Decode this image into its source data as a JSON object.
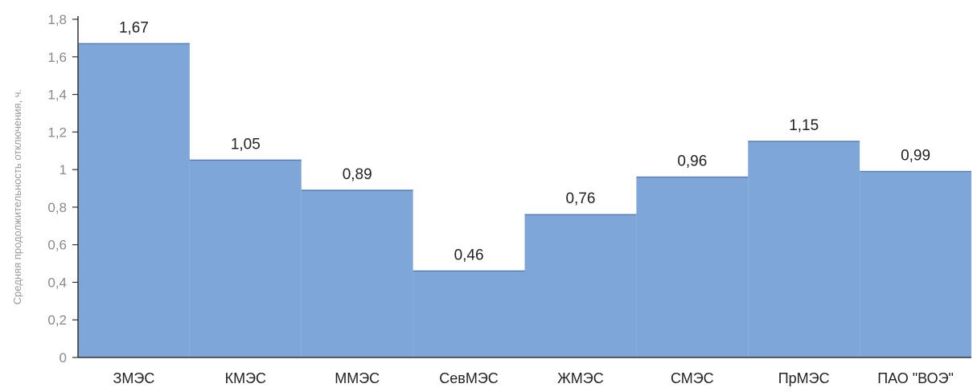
{
  "chart_data": {
    "type": "bar",
    "title": "",
    "xlabel": "",
    "ylabel": "Средняя продолжительность отключения, ч.",
    "categories": [
      "ЗМЭС",
      "КМЭС",
      "ММЭС",
      "СевМЭС",
      "ЖМЭС",
      "СМЭС",
      "ПрМЭС",
      "ПАО \"ВОЭ\""
    ],
    "values": [
      1.67,
      1.05,
      0.89,
      0.46,
      0.76,
      0.96,
      1.15,
      0.99
    ],
    "data_labels": [
      "1,67",
      "1,05",
      "0,89",
      "0,46",
      "0,76",
      "0,96",
      "1,15",
      "0,99"
    ],
    "yticks": [
      0,
      0.2,
      0.4,
      0.6,
      0.8,
      1,
      1.2,
      1.4,
      1.6,
      1.8
    ],
    "ytick_labels": [
      "0",
      "0,2",
      "0,4",
      "0,6",
      "0,8",
      "1",
      "1,2",
      "1,4",
      "1,6",
      "1,8"
    ],
    "ylim": [
      0,
      1.8
    ],
    "grid": false,
    "legend": "none",
    "bar_color": "#7fa6d8",
    "bar_edge_color": "#5a7fb5"
  }
}
